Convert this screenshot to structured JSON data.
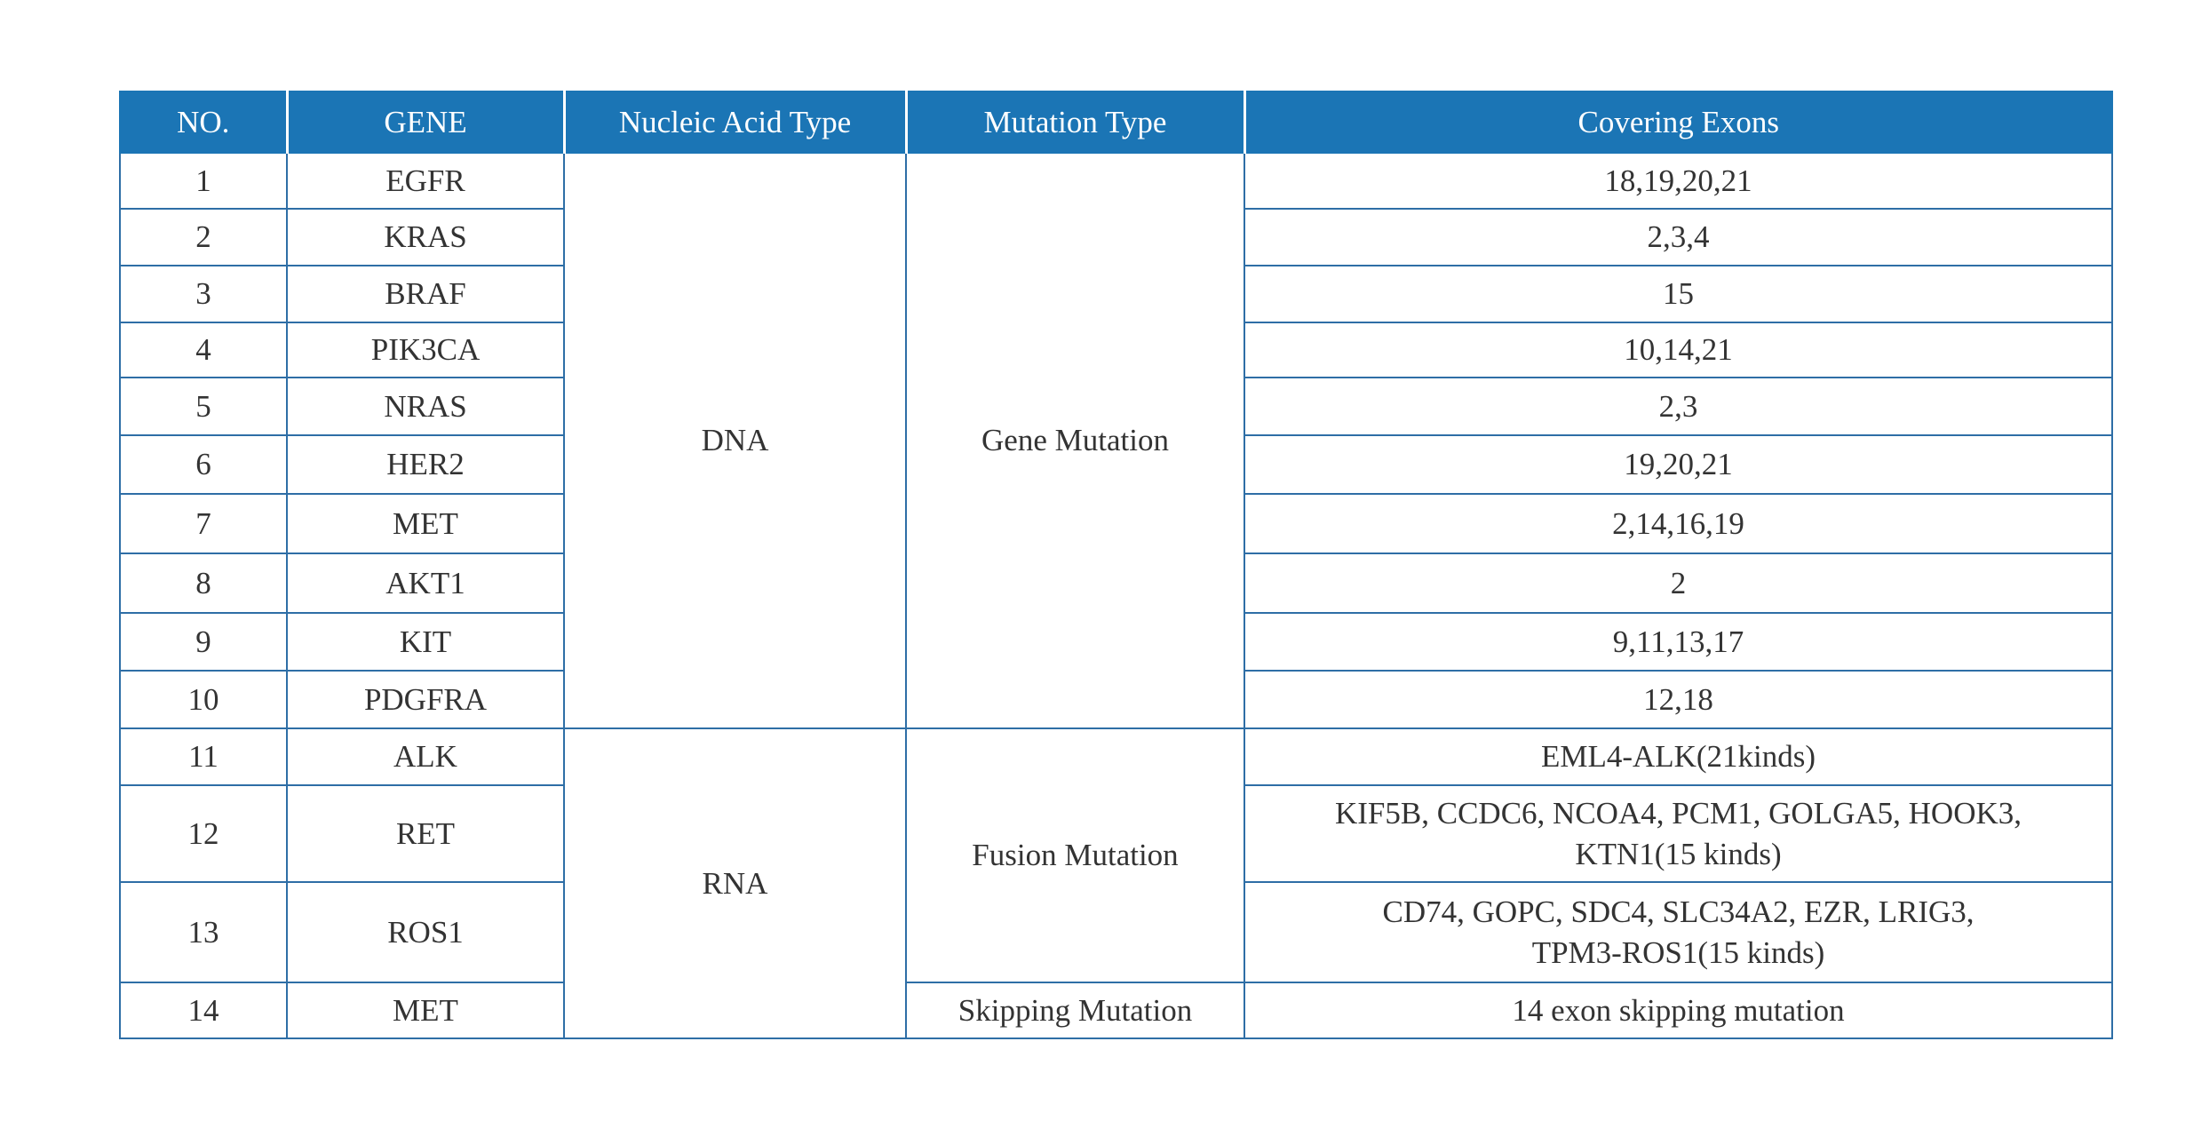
{
  "table": {
    "header": [
      "NO.",
      "GENE",
      "Nucleic Acid Type",
      "Mutation Type",
      "Covering Exons"
    ],
    "rows": [
      [
        1,
        "EGFR",
        "DNA",
        "Gene Mutation",
        "18,19,20,21"
      ],
      [
        2,
        "KRAS",
        null,
        null,
        "2,3,4"
      ],
      [
        3,
        "BRAF",
        null,
        null,
        "15"
      ],
      [
        4,
        "PIK3CA",
        null,
        null,
        "10,14,21"
      ],
      [
        5,
        "NRAS",
        null,
        null,
        "2,3"
      ],
      [
        6,
        "HER2",
        null,
        null,
        "19,20,21"
      ],
      [
        7,
        "MET",
        null,
        null,
        "2,14,16,19"
      ],
      [
        8,
        "AKT1",
        null,
        null,
        "2"
      ],
      [
        9,
        "KIT",
        null,
        null,
        "9,11,13,17"
      ],
      [
        10,
        "PDGFRA",
        null,
        null,
        "12,18"
      ],
      [
        11,
        "ALK",
        "RNA",
        "Fusion Mutation",
        "EML4-ALK(21kinds)"
      ],
      [
        12,
        "RET",
        null,
        null,
        "KIF5B, CCDC6, NCOA4, PCM1, GOLGA5, HOOK3,\nKTN1(15 kinds)"
      ],
      [
        13,
        "ROS1",
        null,
        null,
        "CD74, GOPC, SDC4, SLC34A2, EZR, LRIG3,\nTPM3-ROS1(15 kinds)"
      ],
      [
        14,
        "MET",
        null,
        "Skipping Mutation",
        "14 exon skipping mutation"
      ]
    ]
  }
}
